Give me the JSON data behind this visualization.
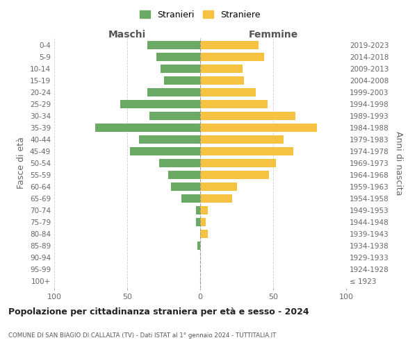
{
  "age_groups": [
    "100+",
    "95-99",
    "90-94",
    "85-89",
    "80-84",
    "75-79",
    "70-74",
    "65-69",
    "60-64",
    "55-59",
    "50-54",
    "45-49",
    "40-44",
    "35-39",
    "30-34",
    "25-29",
    "20-24",
    "15-19",
    "10-14",
    "5-9",
    "0-4"
  ],
  "birth_years": [
    "≤ 1923",
    "1924-1928",
    "1929-1933",
    "1934-1938",
    "1939-1943",
    "1944-1948",
    "1949-1953",
    "1954-1958",
    "1959-1963",
    "1964-1968",
    "1969-1973",
    "1974-1978",
    "1979-1983",
    "1984-1988",
    "1989-1993",
    "1994-1998",
    "1999-2003",
    "2004-2008",
    "2009-2013",
    "2014-2018",
    "2019-2023"
  ],
  "maschi": [
    0,
    0,
    0,
    2,
    0,
    3,
    3,
    13,
    20,
    22,
    28,
    48,
    42,
    72,
    35,
    55,
    36,
    25,
    27,
    30,
    36
  ],
  "femmine": [
    0,
    0,
    0,
    0,
    5,
    4,
    5,
    22,
    25,
    47,
    52,
    64,
    57,
    80,
    65,
    46,
    38,
    30,
    29,
    44,
    40
  ],
  "color_maschi": "#6aaa64",
  "color_femmine": "#f5c242",
  "color_centerline": "#999999",
  "title": "Popolazione per cittadinanza straniera per età e sesso - 2024",
  "subtitle": "COMUNE DI SAN BIAGIO DI CALLALTA (TV) - Dati ISTAT al 1° gennaio 2024 - TUTTITALIA.IT",
  "label_maschi": "Maschi",
  "label_femmine": "Femmine",
  "ylabel_left": "Fasce di età",
  "ylabel_right": "Anni di nascita",
  "legend_maschi": "Stranieri",
  "legend_femmine": "Straniere",
  "xlim": 100,
  "background_color": "#ffffff",
  "grid_color": "#cccccc"
}
